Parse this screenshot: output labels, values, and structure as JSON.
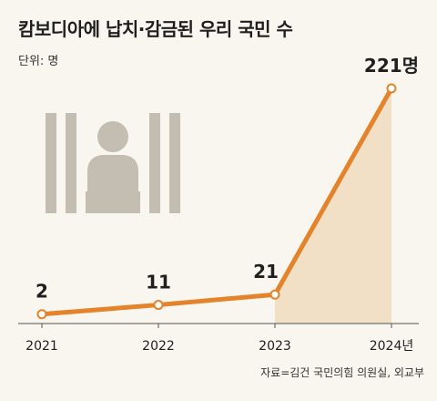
{
  "title": "캄보디아에 납치·감금된 우리 국민 수",
  "unit_label": "단위: 명",
  "source": "자료=김건 국민의힘 의원실, 외교부",
  "icon": "prisoner-behind-bars-icon",
  "colors": {
    "line": "#e5832b",
    "area": "#f1dfc6",
    "background": "#f9f5ef",
    "icon": "#c4bdb2"
  },
  "chart_data": {
    "type": "area",
    "categories": [
      "2021",
      "2022",
      "2023",
      "2024년"
    ],
    "values": [
      2,
      11,
      21,
      221
    ],
    "data_labels": [
      "2",
      "11",
      "21",
      "221명"
    ],
    "title": "캄보디아에 납치·감금된 우리 국민 수",
    "xlabel": "",
    "ylabel": "",
    "unit": "명",
    "ylim": [
      0,
      221
    ],
    "grid": false,
    "legend": "none"
  }
}
